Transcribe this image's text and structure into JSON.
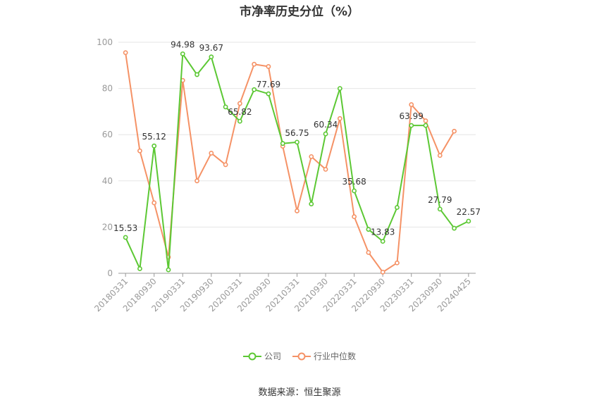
{
  "chart_data": {
    "type": "line",
    "title": "市净率历史分位（%）",
    "ylim": [
      0,
      100
    ],
    "yticks": [
      0,
      20,
      40,
      60,
      80,
      100
    ],
    "x_tick_labels": [
      "20180331",
      "20180930",
      "20190331",
      "20190930",
      "20200331",
      "20200930",
      "20210331",
      "20210930",
      "20220331",
      "20220930",
      "20230331",
      "20230930",
      "20240425"
    ],
    "grid": true,
    "legend_position": "bottom",
    "series": [
      {
        "name": "公司",
        "color": "#5cc834",
        "values": [
          15.53,
          2,
          55.12,
          1.5,
          94.98,
          86,
          93.67,
          72,
          65.82,
          79.5,
          77.69,
          56.2,
          56.75,
          30,
          60.34,
          80,
          35.68,
          19,
          13.83,
          28.5,
          63.99,
          64,
          27.79,
          19.5,
          22.57
        ],
        "labels": [
          "15.53",
          "",
          "55.12",
          "",
          "94.98",
          "",
          "93.67",
          "",
          "65.82",
          "",
          "77.69",
          "",
          "56.75",
          "",
          "60.34",
          "",
          "35.68",
          "",
          "13.83",
          "",
          "63.99",
          "",
          "27.79",
          "",
          "22.57"
        ]
      },
      {
        "name": "行业中位数",
        "color": "#f59266",
        "values": [
          95.5,
          53,
          30.5,
          7,
          83.5,
          40,
          52,
          47,
          73.5,
          90.5,
          89.5,
          55,
          27,
          50.5,
          45,
          67,
          24.5,
          9,
          0.5,
          4.5,
          73,
          66,
          51,
          61.5,
          null
        ]
      }
    ]
  },
  "legend": {
    "company": "公司",
    "industry": "行业中位数"
  },
  "source": "数据来源：恒生聚源"
}
